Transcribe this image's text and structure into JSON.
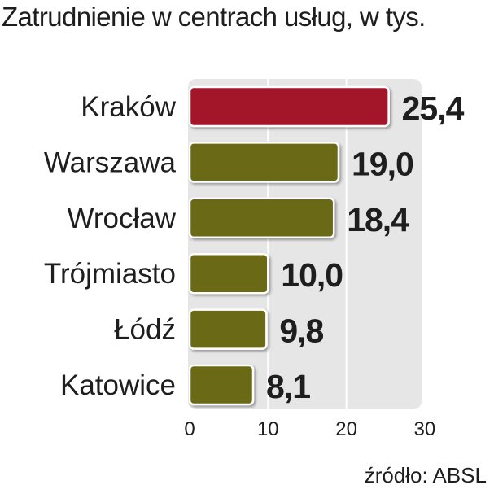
{
  "chart_data": {
    "type": "bar",
    "orientation": "horizontal",
    "title": "Zatrudnienie w centrach usług, w tys.",
    "categories": [
      "Kraków",
      "Warszawa",
      "Wrocław",
      "Trójmiasto",
      "Łódź",
      "Katowice"
    ],
    "values": [
      25.4,
      19.0,
      18.4,
      10.0,
      9.8,
      8.1
    ],
    "value_labels": [
      "25,4",
      "19,0",
      "18,4",
      "10,0",
      "9,8",
      "8,1"
    ],
    "xlim": [
      0,
      30
    ],
    "x_ticks": [
      0,
      10,
      20,
      30
    ],
    "x_tick_labels": [
      "0",
      "10",
      "20",
      "30"
    ],
    "grid": true,
    "colors": {
      "highlight": "#a3122a",
      "default": "#6b6a16",
      "plot_background": "#e6e6e6",
      "gridline": "#ffffff"
    },
    "highlight_index": 0
  },
  "source": "źródło: ABSL"
}
